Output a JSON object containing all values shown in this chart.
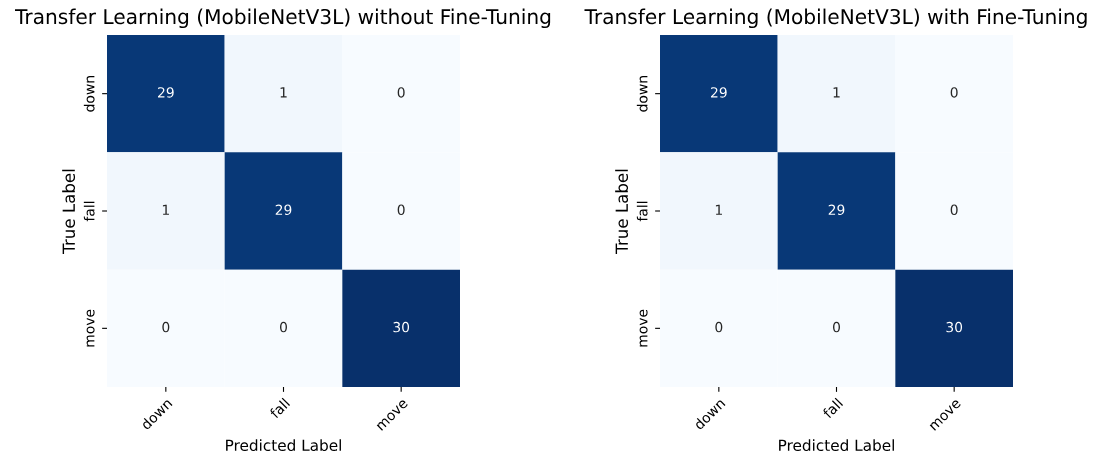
{
  "chart_data": [
    {
      "type": "heatmap",
      "title": "Transfer Learning (MobileNetV3L) without Fine-Tuning",
      "xlabel": "Predicted Label",
      "ylabel": "True Label",
      "categories": [
        "down",
        "fall",
        "move"
      ],
      "y_categories": [
        "down",
        "fall",
        "move"
      ],
      "cells": [
        [
          29,
          1,
          0
        ],
        [
          1,
          29,
          0
        ],
        [
          0,
          0,
          30
        ]
      ],
      "data_labels": true
    },
    {
      "type": "heatmap",
      "title": "Transfer Learning (MobileNetV3L) with Fine-Tuning",
      "xlabel": "Predicted Label",
      "ylabel": "True Label",
      "categories": [
        "down",
        "fall",
        "move"
      ],
      "y_categories": [
        "down",
        "fall",
        "move"
      ],
      "cells": [
        [
          29,
          1,
          0
        ],
        [
          1,
          29,
          0
        ],
        [
          0,
          0,
          30
        ]
      ],
      "data_labels": true
    }
  ]
}
